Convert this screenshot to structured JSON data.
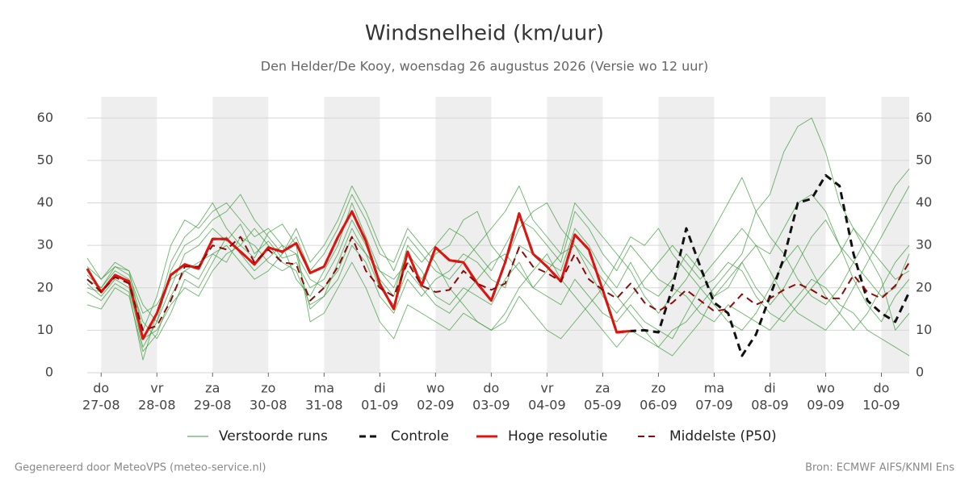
{
  "chart_data": {
    "type": "line",
    "title": "Windsnelheid (km/uur)",
    "subtitle": "Den Helder/De Kooy, woensdag 26 augustus 2026 (Versie wo 12 uur)",
    "footer_left": "Gegenereerd door MeteoVPS (meteo-service.nl)",
    "footer_right": "Bron: ECMWF AIFS/KNMI Ens",
    "xlim": [
      -0.25,
      14.5
    ],
    "ylim": [
      0,
      65
    ],
    "yticks": [
      0,
      10,
      20,
      30,
      40,
      50,
      60
    ],
    "grid": true,
    "xticks": [
      {
        "value": 0,
        "label": [
          "do",
          "27-08"
        ]
      },
      {
        "value": 1,
        "label": [
          "vr",
          "28-08"
        ]
      },
      {
        "value": 2,
        "label": [
          "za",
          "29-08"
        ]
      },
      {
        "value": 3,
        "label": [
          "zo",
          "30-08"
        ]
      },
      {
        "value": 4,
        "label": [
          "ma",
          "31-08"
        ]
      },
      {
        "value": 5,
        "label": [
          "di",
          "01-09"
        ]
      },
      {
        "value": 6,
        "label": [
          "wo",
          "02-09"
        ]
      },
      {
        "value": 7,
        "label": [
          "do",
          "03-09"
        ]
      },
      {
        "value": 8,
        "label": [
          "vr",
          "04-09"
        ]
      },
      {
        "value": 9,
        "label": [
          "za",
          "05-09"
        ]
      },
      {
        "value": 10,
        "label": [
          "zo",
          "06-09"
        ]
      },
      {
        "value": 11,
        "label": [
          "ma",
          "07-09"
        ]
      },
      {
        "value": 12,
        "label": [
          "di",
          "08-09"
        ]
      },
      {
        "value": 13,
        "label": [
          "wo",
          "09-09"
        ]
      },
      {
        "value": 14,
        "label": [
          "do",
          "10-09"
        ]
      }
    ],
    "x": [
      -0.25,
      0,
      0.25,
      0.5,
      0.75,
      1,
      1.25,
      1.5,
      1.75,
      2,
      2.25,
      2.5,
      2.75,
      3,
      3.25,
      3.5,
      3.75,
      4,
      4.25,
      4.5,
      4.75,
      5,
      5.25,
      5.5,
      5.75,
      6,
      6.25,
      6.5,
      6.75,
      7,
      7.25,
      7.5,
      7.75,
      8,
      8.25,
      8.5,
      8.75,
      9,
      9.25,
      9.5,
      9.75,
      10,
      10.25,
      10.5,
      10.75,
      11,
      11.25,
      11.5,
      11.75,
      12,
      12.25,
      12.5,
      12.75,
      13,
      13.25,
      13.5,
      13.75,
      14,
      14.25,
      14.5
    ],
    "ensemble": {
      "name": "Verstoorde runs",
      "color": "#3a9a3a",
      "members": [
        [
          21,
          18,
          22,
          20,
          6,
          12,
          20,
          28,
          30,
          34,
          31,
          35,
          28,
          31,
          27,
          28,
          15,
          18,
          22,
          30,
          26,
          18,
          14,
          22,
          18,
          22,
          24,
          28,
          26,
          22,
          20,
          30,
          28,
          26,
          24,
          34,
          30,
          24,
          20,
          26,
          20,
          18,
          22,
          28,
          24,
          18,
          20,
          26,
          30,
          28,
          34,
          40,
          42,
          38,
          30,
          26,
          22,
          18,
          20,
          28
        ],
        [
          23,
          20,
          24,
          22,
          12,
          8,
          14,
          22,
          20,
          26,
          32,
          28,
          24,
          27,
          30,
          22,
          18,
          24,
          30,
          40,
          32,
          24,
          20,
          28,
          24,
          18,
          16,
          20,
          18,
          16,
          22,
          26,
          20,
          18,
          16,
          22,
          18,
          14,
          12,
          16,
          12,
          10,
          8,
          14,
          20,
          22,
          26,
          24,
          18,
          14,
          12,
          16,
          20,
          24,
          28,
          34,
          30,
          26,
          22,
          24
        ],
        [
          19,
          17,
          21,
          19,
          3,
          14,
          26,
          32,
          35,
          40,
          34,
          30,
          27,
          33,
          35,
          30,
          12,
          14,
          20,
          26,
          20,
          12,
          8,
          16,
          14,
          12,
          10,
          14,
          12,
          10,
          14,
          20,
          24,
          28,
          22,
          18,
          14,
          10,
          6,
          10,
          8,
          6,
          10,
          12,
          16,
          20,
          24,
          28,
          38,
          42,
          52,
          58,
          60,
          52,
          40,
          34,
          28,
          22,
          10,
          14
        ],
        [
          22,
          20,
          25,
          23,
          14,
          16,
          22,
          24,
          22,
          28,
          26,
          32,
          30,
          26,
          24,
          26,
          20,
          22,
          28,
          36,
          30,
          22,
          18,
          30,
          26,
          30,
          34,
          32,
          28,
          24,
          30,
          36,
          34,
          30,
          26,
          38,
          34,
          28,
          24,
          30,
          26,
          22,
          20,
          18,
          14,
          12,
          16,
          14,
          12,
          10,
          14,
          18,
          22,
          20,
          16,
          14,
          10,
          8,
          6,
          4
        ],
        [
          16,
          15,
          20,
          18,
          5,
          9,
          18,
          24,
          26,
          28,
          30,
          26,
          22,
          24,
          28,
          32,
          24,
          28,
          34,
          42,
          36,
          28,
          26,
          34,
          30,
          26,
          20,
          16,
          12,
          10,
          12,
          18,
          14,
          10,
          8,
          12,
          16,
          20,
          26,
          32,
          30,
          34,
          28,
          24,
          20,
          16,
          12,
          10,
          14,
          20,
          26,
          30,
          24,
          18,
          14,
          10,
          14,
          20,
          26,
          30
        ],
        [
          25,
          22,
          26,
          24,
          10,
          18,
          30,
          36,
          34,
          38,
          40,
          36,
          32,
          34,
          30,
          28,
          22,
          20,
          24,
          32,
          28,
          24,
          22,
          26,
          22,
          28,
          30,
          36,
          38,
          30,
          26,
          34,
          38,
          40,
          34,
          30,
          26,
          22,
          18,
          14,
          10,
          6,
          4,
          8,
          12,
          18,
          22,
          26,
          20,
          16,
          20,
          26,
          32,
          36,
          30,
          22,
          16,
          12,
          18,
          22
        ],
        [
          20,
          19,
          23,
          21,
          8,
          10,
          16,
          20,
          18,
          24,
          28,
          30,
          34,
          30,
          26,
          24,
          16,
          18,
          26,
          34,
          28,
          20,
          16,
          24,
          20,
          16,
          14,
          18,
          22,
          26,
          28,
          24,
          20,
          24,
          28,
          30,
          24,
          18,
          14,
          18,
          22,
          26,
          30,
          26,
          22,
          26,
          30,
          34,
          30,
          24,
          18,
          14,
          12,
          10,
          14,
          20,
          26,
          32,
          38,
          44
        ],
        [
          27,
          22,
          25,
          24,
          16,
          12,
          24,
          30,
          32,
          36,
          38,
          42,
          36,
          32,
          28,
          34,
          26,
          30,
          36,
          44,
          38,
          30,
          24,
          32,
          28,
          24,
          22,
          26,
          30,
          34,
          38,
          44,
          36,
          32,
          28,
          40,
          36,
          32,
          28,
          24,
          18,
          14,
          18,
          22,
          28,
          34,
          40,
          46,
          38,
          32,
          28,
          22,
          18,
          16,
          20,
          26,
          32,
          38,
          44,
          48
        ]
      ]
    },
    "series": [
      {
        "name": "Controle",
        "color": "#111111",
        "dash": true,
        "width": 3,
        "values": [
          24.5,
          19,
          23,
          21.5,
          8,
          14,
          23,
          25.5,
          24.5,
          31.5,
          31.5,
          28.5,
          25.5,
          29.5,
          28.5,
          30.5,
          23.5,
          25,
          32,
          38,
          31,
          21,
          15,
          28.5,
          20.5,
          29.5,
          26.5,
          26,
          21,
          17,
          26,
          37.5,
          28,
          25,
          21.5,
          32.5,
          29,
          19.5,
          9.5,
          9.8,
          10,
          9.5,
          20,
          34,
          25,
          16.5,
          14,
          4,
          9,
          18,
          27,
          40,
          41,
          46.5,
          44,
          28,
          17,
          14,
          12,
          19
        ]
      },
      {
        "name": "Hoge resolutie",
        "color": "#e0140f",
        "dash": false,
        "width": 3,
        "values": [
          24.5,
          19,
          23,
          21.5,
          8,
          14,
          23,
          25.5,
          24.5,
          31.5,
          31.5,
          28.5,
          25.5,
          29.5,
          28.5,
          30.5,
          23.5,
          25,
          32,
          38,
          31,
          21,
          15,
          28.5,
          20.5,
          29.5,
          26.5,
          26,
          21,
          17,
          26,
          37.5,
          28,
          25,
          21.5,
          32.5,
          29,
          19.5,
          9.5,
          9.8,
          null,
          null,
          null,
          null,
          null,
          null,
          null,
          null,
          null,
          null,
          null,
          null,
          null,
          null,
          null,
          null,
          null,
          null,
          null,
          null
        ]
      },
      {
        "name": "Middelste (P50)",
        "color": "#8b0a0a",
        "dash": true,
        "width": 2,
        "values": [
          22,
          19,
          22.5,
          21,
          10,
          11,
          17,
          25,
          25,
          30,
          29,
          32,
          26,
          29,
          26,
          25.5,
          17,
          20,
          25,
          32,
          24,
          20,
          18,
          26,
          20.5,
          19,
          19.5,
          24,
          21,
          19.5,
          21,
          29.5,
          25,
          23.5,
          21.5,
          28,
          22,
          19.5,
          17.5,
          21,
          16.5,
          14.5,
          16.5,
          19.5,
          17,
          14.5,
          15,
          18.5,
          16,
          17.5,
          19.5,
          21,
          19.5,
          17.5,
          17.5,
          23,
          19,
          17.5,
          20.5,
          26
        ]
      }
    ]
  }
}
